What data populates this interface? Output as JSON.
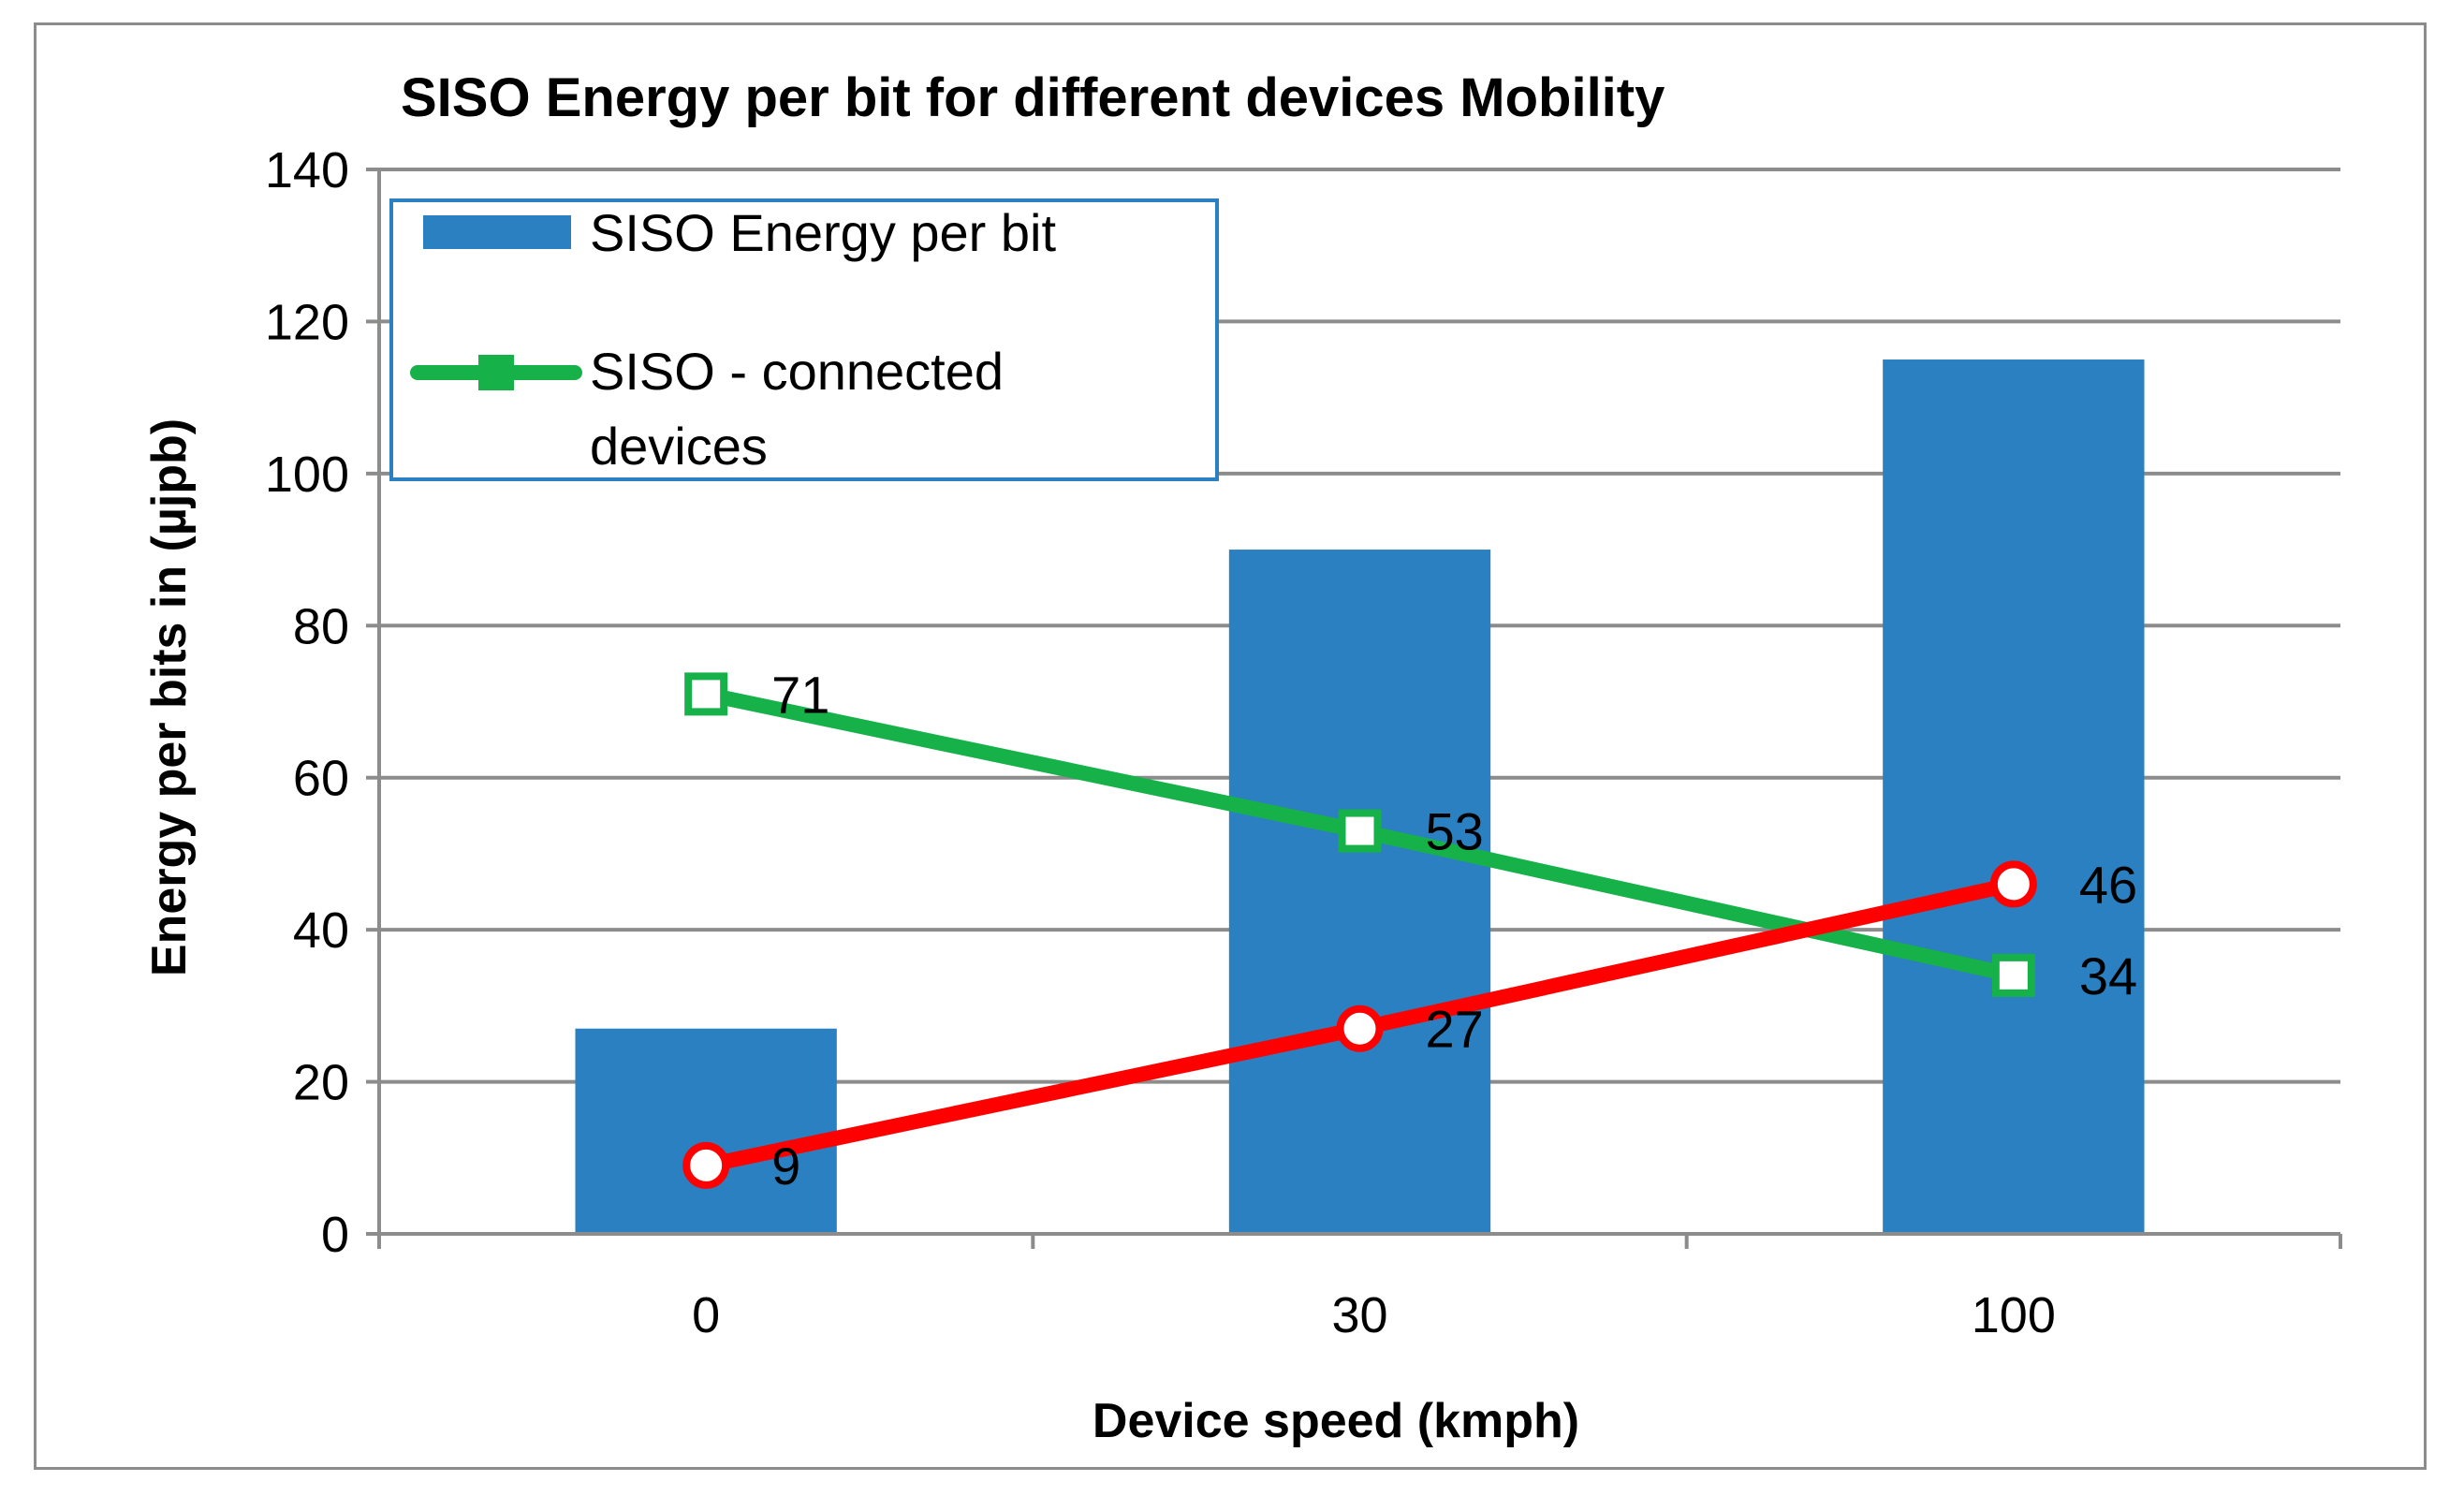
{
  "chart_data": {
    "type": "bar",
    "title": "SISO Energy per bit for different devices Mobility",
    "xlabel": "Device speed (kmph)",
    "ylabel": "Energy per bits in (µjpb)",
    "categories": [
      "0",
      "30",
      "100"
    ],
    "ylim": [
      0,
      140
    ],
    "yticks": [
      0,
      20,
      40,
      60,
      80,
      100,
      120,
      140
    ],
    "grid": true,
    "legend_position": "top-left",
    "series": [
      {
        "name": "SISO Energy per bit",
        "kind": "bar",
        "color": "#2a80c0",
        "values": [
          27,
          90,
          115
        ]
      },
      {
        "name": "SISO - connected devices",
        "legend_lines": [
          "SISO - connected",
          "devices"
        ],
        "kind": "line",
        "marker": "square",
        "color": "#17b14a",
        "values": [
          71,
          53,
          34
        ],
        "labels": [
          "71",
          "53",
          "34"
        ]
      },
      {
        "name": "",
        "kind": "line",
        "marker": "circle",
        "color": "#ff0000",
        "values": [
          9,
          27,
          46
        ],
        "labels": [
          "9",
          "27",
          "46"
        ]
      }
    ]
  }
}
